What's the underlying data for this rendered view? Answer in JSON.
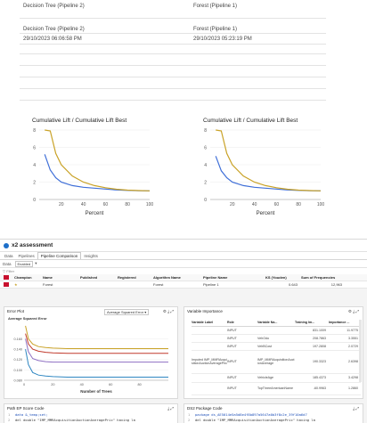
{
  "comparison": {
    "left_header": "Decision Tree (Pipeline 2)",
    "right_header": "Forest (Pipeline 1)",
    "left_name": "Decision Tree (Pipeline 2)",
    "right_name": "Forest (Pipeline 1)",
    "left_date": "29/10/2023 06:06:58 PM",
    "right_date": "29/10/2023 05:23:19 PM"
  },
  "lift_chart_left": {
    "title": "Cumulative Lift / Cumulative Lift Best",
    "xlabel": "Percent",
    "yticks": [
      "8",
      "6",
      "4",
      "2",
      "0"
    ],
    "xticks": [
      "20",
      "40",
      "60",
      "80",
      "100"
    ]
  },
  "lift_chart_right": {
    "title": "Cumulative Lift / Cumulative Lift Best",
    "xlabel": "Percent",
    "yticks": [
      "8",
      "6",
      "4",
      "2",
      "0"
    ],
    "xticks": [
      "20",
      "40",
      "60",
      "80",
      "100"
    ]
  },
  "chart_data": [
    {
      "type": "line",
      "title": "Cumulative Lift / Cumulative Lift Best",
      "xlabel": "Percent",
      "ylabel": "",
      "xlim": [
        0,
        100
      ],
      "ylim": [
        0,
        8
      ],
      "series": [
        {
          "x": [
            5,
            10,
            15,
            20,
            30,
            40,
            50,
            60,
            70,
            80,
            90,
            100
          ],
          "values": [
            5.2,
            3.4,
            2.5,
            2.0,
            1.6,
            1.4,
            1.3,
            1.2,
            1.1,
            1.05,
            1.02,
            1.0
          ],
          "color": "#3f6fd8"
        },
        {
          "x": [
            5,
            10,
            15,
            20,
            30,
            40,
            50,
            60,
            70,
            80,
            90,
            100
          ],
          "values": [
            8.0,
            7.9,
            5.3,
            4.0,
            2.7,
            2.0,
            1.6,
            1.35,
            1.18,
            1.08,
            1.03,
            1.0
          ],
          "color": "#c9a227"
        }
      ]
    },
    {
      "type": "line",
      "title": "Cumulative Lift / Cumulative Lift Best",
      "xlabel": "Percent",
      "ylabel": "",
      "xlim": [
        0,
        100
      ],
      "ylim": [
        0,
        8
      ],
      "series": [
        {
          "x": [
            5,
            10,
            15,
            20,
            30,
            40,
            50,
            60,
            70,
            80,
            90,
            100
          ],
          "values": [
            5.0,
            3.3,
            2.5,
            2.0,
            1.6,
            1.4,
            1.3,
            1.2,
            1.1,
            1.05,
            1.02,
            1.0
          ],
          "color": "#3f6fd8"
        },
        {
          "x": [
            5,
            10,
            15,
            20,
            30,
            40,
            50,
            60,
            70,
            80,
            90,
            100
          ],
          "values": [
            8.0,
            7.9,
            5.3,
            4.0,
            2.7,
            2.0,
            1.6,
            1.35,
            1.18,
            1.08,
            1.03,
            1.0
          ],
          "color": "#c9a227"
        }
      ]
    },
    {
      "type": "line",
      "title": "Average Squared Error",
      "xlabel": "Number of Trees",
      "ylabel": "",
      "xlim": [
        0,
        100
      ],
      "ylim": [
        0.08,
        0.19
      ],
      "yticks": [
        "0.160",
        "0.140",
        "0.120",
        "0.100",
        "0.080"
      ],
      "xticks": [
        "0",
        "20",
        "40",
        "60",
        "80"
      ],
      "series": [
        {
          "x": [
            1,
            3,
            6,
            10,
            15,
            20,
            30,
            50,
            70,
            90,
            100
          ],
          "values": [
            0.185,
            0.16,
            0.15,
            0.145,
            0.143,
            0.142,
            0.141,
            0.141,
            0.141,
            0.141,
            0.141
          ],
          "color": "#c9a227"
        },
        {
          "x": [
            1,
            3,
            6,
            10,
            15,
            20,
            30,
            50,
            70,
            90,
            100
          ],
          "values": [
            0.17,
            0.15,
            0.14,
            0.136,
            0.134,
            0.133,
            0.132,
            0.132,
            0.132,
            0.132,
            0.132
          ],
          "color": "#c0392b"
        },
        {
          "x": [
            1,
            3,
            6,
            10,
            15,
            20,
            30,
            50,
            70,
            90,
            100
          ],
          "values": [
            0.16,
            0.135,
            0.122,
            0.118,
            0.116,
            0.115,
            0.115,
            0.115,
            0.115,
            0.115,
            0.115
          ],
          "color": "#8e6fc2"
        },
        {
          "x": [
            1,
            3,
            6,
            10,
            15,
            20,
            30,
            50,
            70,
            90,
            100
          ],
          "values": [
            0.14,
            0.11,
            0.095,
            0.09,
            0.088,
            0.087,
            0.086,
            0.086,
            0.086,
            0.086,
            0.086
          ],
          "color": "#2e86c1"
        }
      ]
    }
  ],
  "app": {
    "title": "x2 assessment",
    "tabs": [
      "Data",
      "Pipelines",
      "Pipeline Comparison",
      "Insights"
    ],
    "toolbar_label": "Data",
    "toolbar_select": "Enabled",
    "filter_placeholder": "Filter"
  },
  "grid": {
    "headers": [
      "Champion",
      "Name",
      "Published",
      "Registered",
      "Algorithm Name",
      "Pipeline Name",
      "KS (Youden)",
      "Sum of Frequencies"
    ],
    "rows": [
      {
        "champion": "★",
        "name": "Forest",
        "published": "",
        "registered": "",
        "algorithm": "Forest",
        "pipeline": "Pipeline 1",
        "ks": "0.643",
        "freq": "12,963"
      }
    ]
  },
  "error_plot": {
    "title": "Error Plot",
    "select": "Average Squared Error",
    "chart_title": "Average Squared Error",
    "xlabel": "Number of Trees"
  },
  "var_importance": {
    "title": "Variable Importance",
    "headers": [
      "Variable Label",
      "Role",
      "Variable Na...",
      "Training Im...",
      "Importance ..."
    ],
    "rows": [
      {
        "label": "",
        "role": "INPUT",
        "name": "",
        "train": "831.1009",
        "importance": "11.9775"
      },
      {
        "label": "",
        "role": "INPUT",
        "name": "VehOdo",
        "train": "208.7863",
        "importance": "3.3551"
      },
      {
        "label": "",
        "role": "INPUT",
        "name": "VehBCost",
        "train": "197.2808",
        "importance": "2.0729"
      },
      {
        "label": "Imputed IMP_MMRAcquisitionAuctionAveragePric",
        "role": "INPUT",
        "name": "IMP_MMRAcquisitionAuctionAverage",
        "train": "190.3323",
        "importance": "2.6398"
      },
      {
        "label": "",
        "role": "INPUT",
        "name": "VehicleAge",
        "train": "185.4373",
        "importance": "3.4298"
      },
      {
        "label": "",
        "role": "INPUT",
        "name": "TopThreeAmericanName",
        "train": "-60.9963",
        "importance": "1.2860"
      }
    ]
  },
  "path_ep": {
    "title": "Path EP Score Code",
    "lines": [
      "data &_temp;set;",
      "del double \"IMP_MMRAcquisitionAuctionAveragePric\" having la"
    ]
  },
  "ds2_code": {
    "title": "DS2 Package Code",
    "lines": [
      "package ds_AE5014e5a5d8e4f8b897a5647a0b3f8c2e_39f10a6d7",
      "del double \"IMP_MMRAcquisitionAuctionAveragePric\" having la"
    ]
  }
}
